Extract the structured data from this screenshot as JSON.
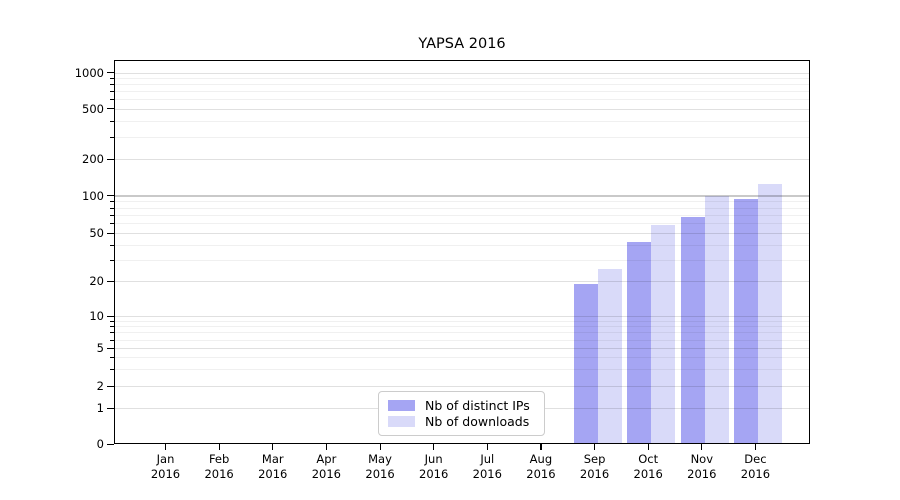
{
  "title": "YAPSA 2016",
  "legend": {
    "items": [
      {
        "label": "Nb of distinct IPs",
        "color": "#a5a5f3"
      },
      {
        "label": "Nb of downloads",
        "color": "#d9daf9"
      }
    ]
  },
  "axes": {
    "months": [
      "Jan",
      "Feb",
      "Mar",
      "Apr",
      "May",
      "Jun",
      "Jul",
      "Aug",
      "Sep",
      "Oct",
      "Nov",
      "Dec"
    ],
    "year": "2016",
    "y_tick_labels": [
      "0",
      "1",
      "2",
      "5",
      "10",
      "20",
      "50",
      "100",
      "200",
      "500",
      "1000"
    ]
  },
  "chart_data": {
    "type": "bar",
    "title": "YAPSA 2016",
    "categories": [
      "Jan 2016",
      "Feb 2016",
      "Mar 2016",
      "Apr 2016",
      "May 2016",
      "Jun 2016",
      "Jul 2016",
      "Aug 2016",
      "Sep 2016",
      "Oct 2016",
      "Nov 2016",
      "Dec 2016"
    ],
    "series": [
      {
        "name": "Nb of distinct IPs",
        "color": "#a5a5f3",
        "values": [
          0,
          0,
          0,
          0,
          0,
          0,
          0,
          0,
          19,
          42,
          67,
          94
        ]
      },
      {
        "name": "Nb of downloads",
        "color": "#d9daf9",
        "values": [
          0,
          0,
          0,
          0,
          0,
          0,
          0,
          0,
          25,
          58,
          100,
          124
        ]
      }
    ],
    "xlabel": "",
    "ylabel": "",
    "yscale": "symlog",
    "y_ticks": [
      0,
      1,
      2,
      5,
      10,
      20,
      50,
      100,
      200,
      500,
      1000
    ],
    "y_minor_ticks": [
      3,
      4,
      6,
      7,
      8,
      9,
      30,
      40,
      60,
      70,
      80,
      90,
      300,
      400,
      600,
      700,
      800,
      900
    ],
    "ylim": [
      0,
      1200
    ],
    "grid": true,
    "legend_position": "lower center-left inside plot"
  }
}
